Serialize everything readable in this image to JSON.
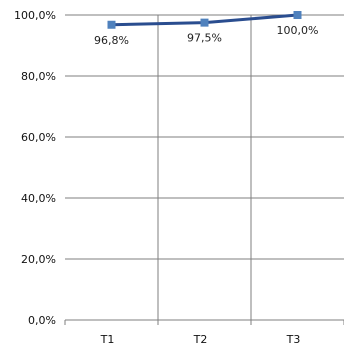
{
  "chart_data": {
    "type": "line",
    "title": "",
    "xlabel": "",
    "ylabel": "",
    "categories": [
      "T1",
      "T2",
      "T3"
    ],
    "series": [
      {
        "values": [
          96.8,
          97.5,
          100.0
        ],
        "data_labels": [
          "96,8%",
          "97,5%",
          "100,0%"
        ]
      }
    ],
    "y_ticks": [
      {
        "value": 0,
        "label": "0,0%"
      },
      {
        "value": 20,
        "label": "20,0%"
      },
      {
        "value": 40,
        "label": "40,0%"
      },
      {
        "value": 60,
        "label": "60,0%"
      },
      {
        "value": 80,
        "label": "80,0%"
      },
      {
        "value": 100,
        "label": "100,0%"
      }
    ],
    "ylim": [
      0,
      100
    ],
    "grid": true,
    "legend": "none",
    "colors": {
      "line": "#2a4d8f",
      "marker": "#4f81bd",
      "grid": "#7f7f7f"
    }
  }
}
